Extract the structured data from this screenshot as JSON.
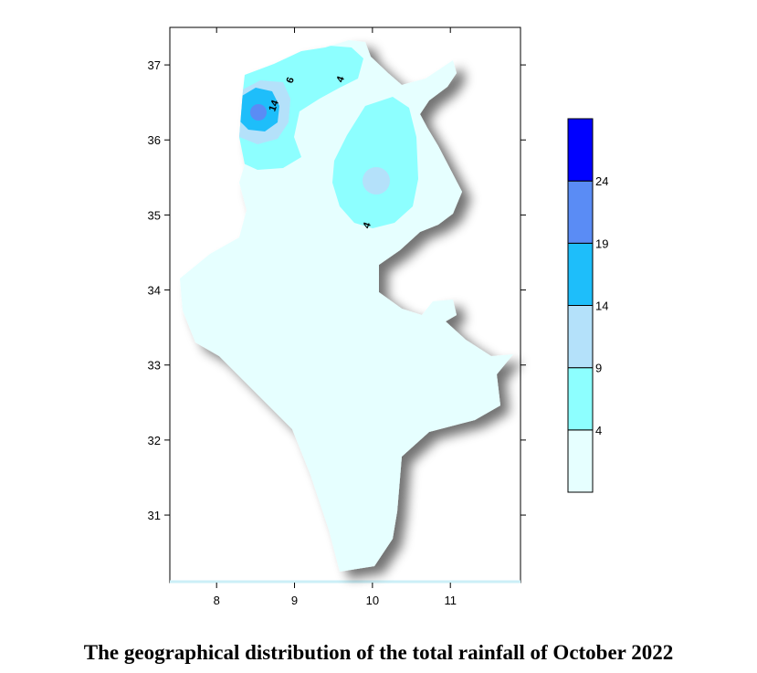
{
  "caption": "The geographical distribution of the total rainfall of October 2022",
  "axes": {
    "x_ticks": [
      "8",
      "9",
      "10",
      "11"
    ],
    "y_ticks": [
      "37",
      "36",
      "35",
      "34",
      "33",
      "32",
      "31"
    ],
    "x_range": [
      7.4,
      11.9
    ],
    "y_range": [
      30.1,
      37.5
    ]
  },
  "legend": {
    "levels": [
      "4",
      "9",
      "14",
      "19",
      "24"
    ],
    "colors": [
      "#e6ffff",
      "#8dffff",
      "#b4e1fa",
      "#1ebefa",
      "#5a8cf5",
      "#0000ff"
    ]
  },
  "contour_labels": [
    "6",
    "4",
    "14",
    "4"
  ]
}
